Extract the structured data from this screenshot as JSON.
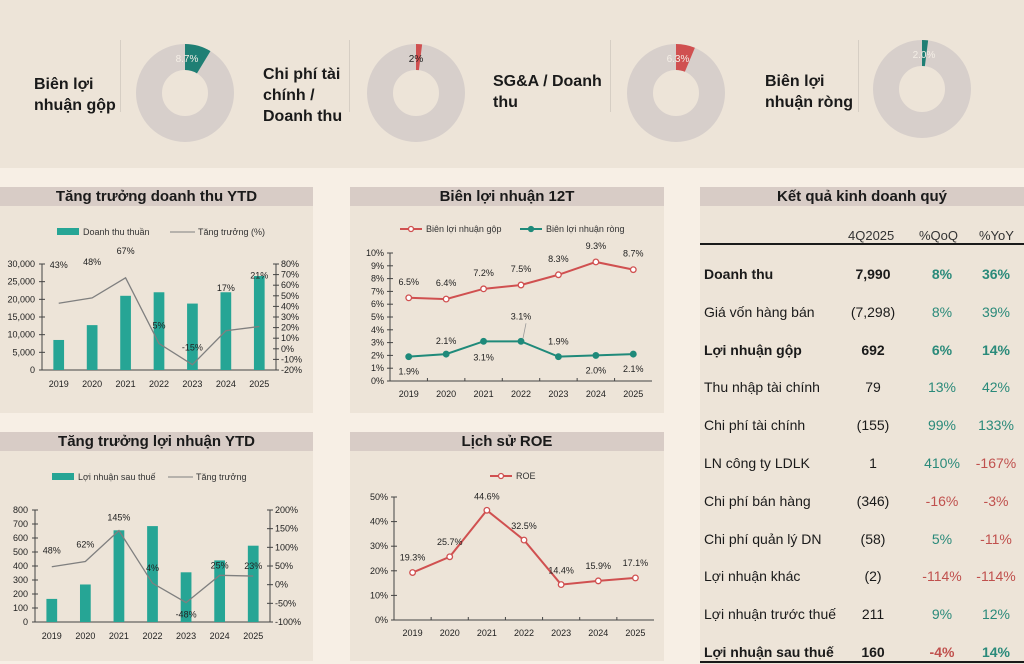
{
  "colors": {
    "teal": "#1f7f74",
    "teal_bar": "#26a595",
    "red": "#d05050",
    "ring": "#d7cfcb",
    "line_gray": "#7f7f7f",
    "pos": "#2a8a7a",
    "neg": "#c0504d"
  },
  "kpis": [
    {
      "label_lines": [
        "Biên lợi",
        "nhuận gộp"
      ],
      "value": 8.7,
      "value_label": "8.7%",
      "color": "#1f7f74"
    },
    {
      "label_lines": [
        "Chi phí tài",
        "chính /",
        "Doanh thu"
      ],
      "value": 2.0,
      "value_label": "2%",
      "color": "#d05050"
    },
    {
      "label_lines": [
        "SG&A / Doanh",
        "thu"
      ],
      "value": 6.3,
      "value_label": "6.3%",
      "color": "#d05050"
    },
    {
      "label_lines": [
        "Biên lợi",
        "nhuận ròng"
      ],
      "value": 2.0,
      "value_label": "2.0%",
      "color": "#1f7f74"
    }
  ],
  "chart_data": [
    {
      "id": "revenue",
      "type": "bar",
      "title": "Tăng trưởng doanh thu YTD",
      "categories": [
        "2019",
        "2020",
        "2021",
        "2022",
        "2023",
        "2024",
        "2025"
      ],
      "series": [
        {
          "name": "Doanh thu thuần",
          "kind": "bar",
          "axis": "left",
          "values": [
            8500,
            12700,
            21000,
            22000,
            18800,
            22000,
            26600
          ]
        },
        {
          "name": "Tăng trưởng (%)",
          "kind": "line",
          "axis": "right",
          "values": [
            43,
            48,
            67,
            5,
            -15,
            17,
            21
          ],
          "labels": [
            "43%",
            "48%",
            "67%",
            "5%",
            "-15%",
            "17%",
            "21%"
          ]
        }
      ],
      "left_axis": {
        "min": 0,
        "max": 30000,
        "ticks": [
          "0",
          "5,000",
          "10,000",
          "15,000",
          "20,000",
          "25,000",
          "30,000"
        ]
      },
      "right_axis": {
        "min": -20,
        "max": 80,
        "ticks": [
          "-20%",
          "-10%",
          "0%",
          "10%",
          "20%",
          "30%",
          "40%",
          "50%",
          "60%",
          "70%",
          "80%"
        ]
      },
      "legend": "top"
    },
    {
      "id": "margin",
      "type": "line",
      "title": "Biên lợi nhuận 12T",
      "categories": [
        "2019",
        "2020",
        "2021",
        "2022",
        "2023",
        "2024",
        "2025"
      ],
      "series": [
        {
          "name": "Biên lợi nhuận gộp",
          "values": [
            6.5,
            6.4,
            7.2,
            7.5,
            8.3,
            9.3,
            8.7
          ],
          "labels": [
            "6.5%",
            "6.4%",
            "7.2%",
            "7.5%",
            "8.3%",
            "9.3%",
            "8.7%"
          ],
          "color": "#d05050",
          "marker": "hollow"
        },
        {
          "name": "Biên lợi nhuận ròng",
          "values": [
            1.9,
            2.1,
            3.1,
            3.1,
            1.9,
            2.0,
            2.1
          ],
          "labels": [
            "1.9%",
            "2.1%",
            "3.1%",
            "3.1%",
            "1.9%",
            "2.0%",
            "2.1%"
          ],
          "color": "#1f8a7a",
          "marker": "filled"
        }
      ],
      "y_axis": {
        "min": 0,
        "max": 10,
        "ticks": [
          "0%",
          "1%",
          "2%",
          "3%",
          "4%",
          "5%",
          "6%",
          "7%",
          "8%",
          "9%",
          "10%"
        ]
      },
      "legend": "top"
    },
    {
      "id": "profit",
      "type": "bar",
      "title": "Tăng trưởng lợi nhuận YTD",
      "categories": [
        "2019",
        "2020",
        "2021",
        "2022",
        "2023",
        "2024",
        "2025"
      ],
      "series": [
        {
          "name": "Lợi nhuận sau thuế",
          "kind": "bar",
          "axis": "left",
          "values": [
            165,
            268,
            655,
            685,
            355,
            440,
            545
          ]
        },
        {
          "name": "Tăng trưởng",
          "kind": "line",
          "axis": "right",
          "values": [
            48,
            62,
            145,
            4,
            -48,
            25,
            23
          ],
          "labels": [
            "48%",
            "62%",
            "145%",
            "4%",
            "-48%",
            "25%",
            "23%"
          ]
        }
      ],
      "left_axis": {
        "min": 0,
        "max": 800,
        "ticks": [
          "0",
          "100",
          "200",
          "300",
          "400",
          "500",
          "600",
          "700",
          "800"
        ]
      },
      "right_axis": {
        "min": -100,
        "max": 200,
        "ticks": [
          "-100%",
          "-50%",
          "0%",
          "50%",
          "100%",
          "150%",
          "200%"
        ]
      },
      "legend": "top"
    },
    {
      "id": "roe",
      "type": "line",
      "title": "Lịch sử ROE",
      "categories": [
        "2019",
        "2020",
        "2021",
        "2022",
        "2023",
        "2024",
        "2025"
      ],
      "series": [
        {
          "name": "ROE",
          "values": [
            19.3,
            25.7,
            44.6,
            32.5,
            14.4,
            15.9,
            17.1
          ],
          "labels": [
            "19.3%",
            "25.7%",
            "44.6%",
            "32.5%",
            "14.4%",
            "15.9%",
            "17.1%"
          ],
          "color": "#d05050",
          "marker": "hollow"
        }
      ],
      "y_axis": {
        "min": 0,
        "max": 50,
        "ticks": [
          "0%",
          "10%",
          "20%",
          "30%",
          "40%",
          "50%"
        ]
      },
      "legend": "top"
    }
  ],
  "table": {
    "title": "Kết quả kinh doanh quý",
    "columns": [
      "4Q2025",
      "%QoQ",
      "%YoY"
    ],
    "rows": [
      {
        "label": "Doanh thu",
        "value": "7,990",
        "qoq": "8%",
        "yoy": "36%",
        "bold": true
      },
      {
        "label": "Giá vốn hàng bán",
        "value": "(7,298)",
        "qoq": "8%",
        "yoy": "39%",
        "bold": false
      },
      {
        "label": "Lợi nhuận gộp",
        "value": "692",
        "qoq": "6%",
        "yoy": "14%",
        "bold": true
      },
      {
        "label": "Thu nhập tài chính",
        "value": "79",
        "qoq": "13%",
        "yoy": "42%",
        "bold": false
      },
      {
        "label": "Chi phí tài chính",
        "value": "(155)",
        "qoq": "99%",
        "yoy": "133%",
        "bold": false
      },
      {
        "label": "LN công ty LDLK",
        "value": "1",
        "qoq": "410%",
        "yoy": "-167%",
        "bold": false
      },
      {
        "label": "Chi phí bán hàng",
        "value": "(346)",
        "qoq": "-16%",
        "yoy": "-3%",
        "bold": false
      },
      {
        "label": "Chi phí quản lý DN",
        "value": "(58)",
        "qoq": "5%",
        "yoy": "-11%",
        "bold": false
      },
      {
        "label": "Lợi nhuận khác",
        "value": "(2)",
        "qoq": "-114%",
        "yoy": "-114%",
        "bold": false
      },
      {
        "label": "Lợi nhuận trước thuế",
        "value": "211",
        "qoq": "9%",
        "yoy": "12%",
        "bold": false
      },
      {
        "label": "Lợi nhuận sau thuế",
        "value": "160",
        "qoq": "-4%",
        "yoy": "14%",
        "bold": true
      }
    ]
  }
}
